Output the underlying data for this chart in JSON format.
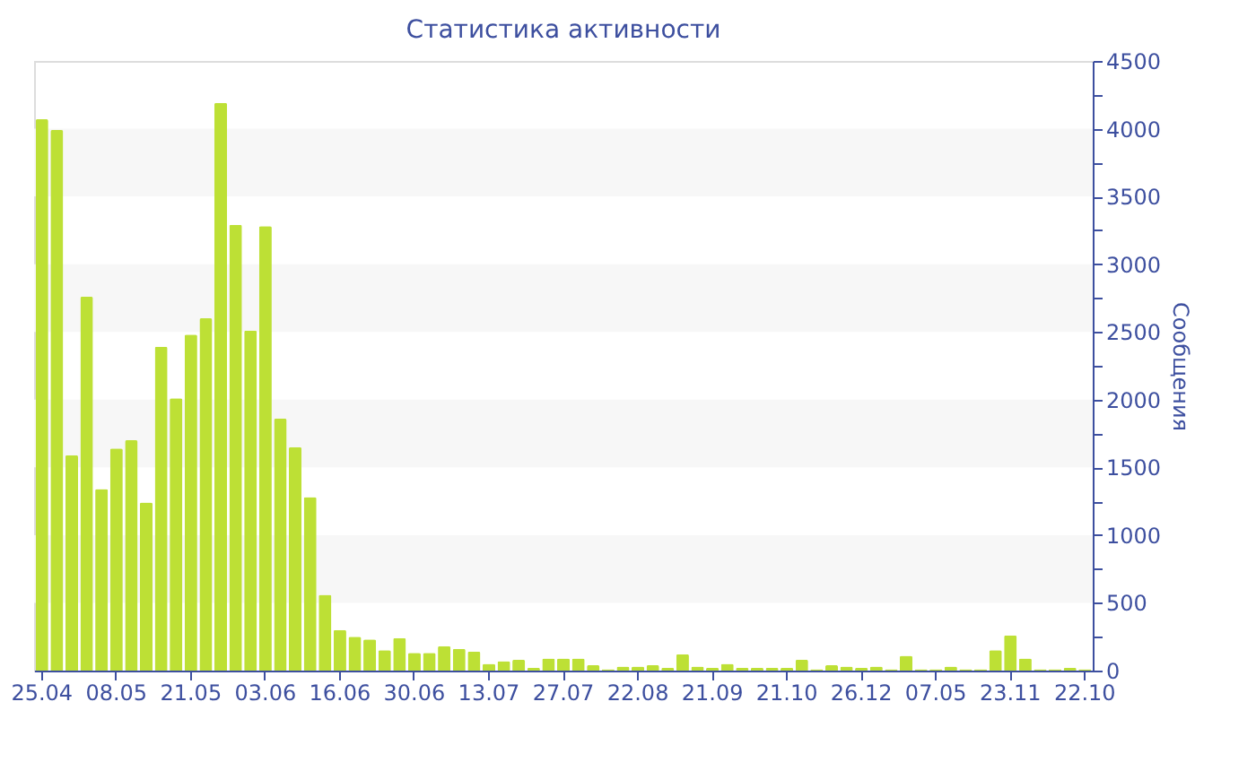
{
  "chart_data": {
    "type": "bar",
    "title": "Статистика активности",
    "ylabel": "Сообщения",
    "categories": [
      "25.04",
      null,
      null,
      null,
      null,
      "08.05",
      null,
      null,
      null,
      null,
      "21.05",
      null,
      null,
      null,
      null,
      "03.06",
      null,
      null,
      null,
      null,
      "16.06",
      null,
      null,
      null,
      null,
      "30.06",
      null,
      null,
      null,
      null,
      "13.07",
      null,
      null,
      null,
      null,
      "27.07",
      null,
      null,
      null,
      null,
      "22.08",
      null,
      null,
      null,
      null,
      "21.09",
      null,
      null,
      null,
      null,
      "21.10",
      null,
      null,
      null,
      null,
      "26.12",
      null,
      null,
      null,
      null,
      "07.05",
      null,
      null,
      null,
      null,
      "23.11",
      null,
      null,
      null,
      null,
      "22.10"
    ],
    "values": [
      4070,
      3990,
      1590,
      2760,
      1340,
      1640,
      1700,
      1240,
      2390,
      2010,
      2480,
      2600,
      4190,
      3290,
      2510,
      3280,
      1860,
      1650,
      1280,
      560,
      300,
      250,
      230,
      150,
      240,
      130,
      130,
      180,
      160,
      140,
      50,
      70,
      80,
      20,
      90,
      90,
      90,
      40,
      10,
      30,
      30,
      40,
      20,
      120,
      30,
      20,
      50,
      20,
      20,
      20,
      20,
      80,
      10,
      40,
      30,
      20,
      30,
      10,
      110,
      10,
      10,
      30,
      10,
      10,
      150,
      260,
      90,
      10,
      10,
      20,
      10
    ],
    "color": "#bde035",
    "ylim": [
      0,
      4500
    ],
    "yticks": [
      0,
      {
        "value": 250,
        "label": null
      },
      500,
      {
        "value": 750,
        "label": null
      },
      1000,
      {
        "value": 1250,
        "label": null
      },
      1500,
      {
        "value": 1750,
        "label": null
      },
      2000,
      {
        "value": 2250,
        "label": null
      },
      2500,
      {
        "value": 2750,
        "label": null
      },
      3000,
      {
        "value": 3250,
        "label": null
      },
      3500,
      {
        "value": 3750,
        "label": null
      },
      4000,
      {
        "value": 4250,
        "label": null
      },
      4500
    ],
    "bands": [
      {
        "axis": "y",
        "from": 500,
        "to": 1000,
        "color": "#f7f7f7"
      },
      {
        "axis": "y",
        "from": 1500,
        "to": 2000,
        "color": "#f7f7f7"
      },
      {
        "axis": "y",
        "from": 2500,
        "to": 3000,
        "color": "#f7f7f7"
      },
      {
        "axis": "y",
        "from": 3500,
        "to": 4000,
        "color": "#f7f7f7"
      }
    ],
    "grid": false
  }
}
